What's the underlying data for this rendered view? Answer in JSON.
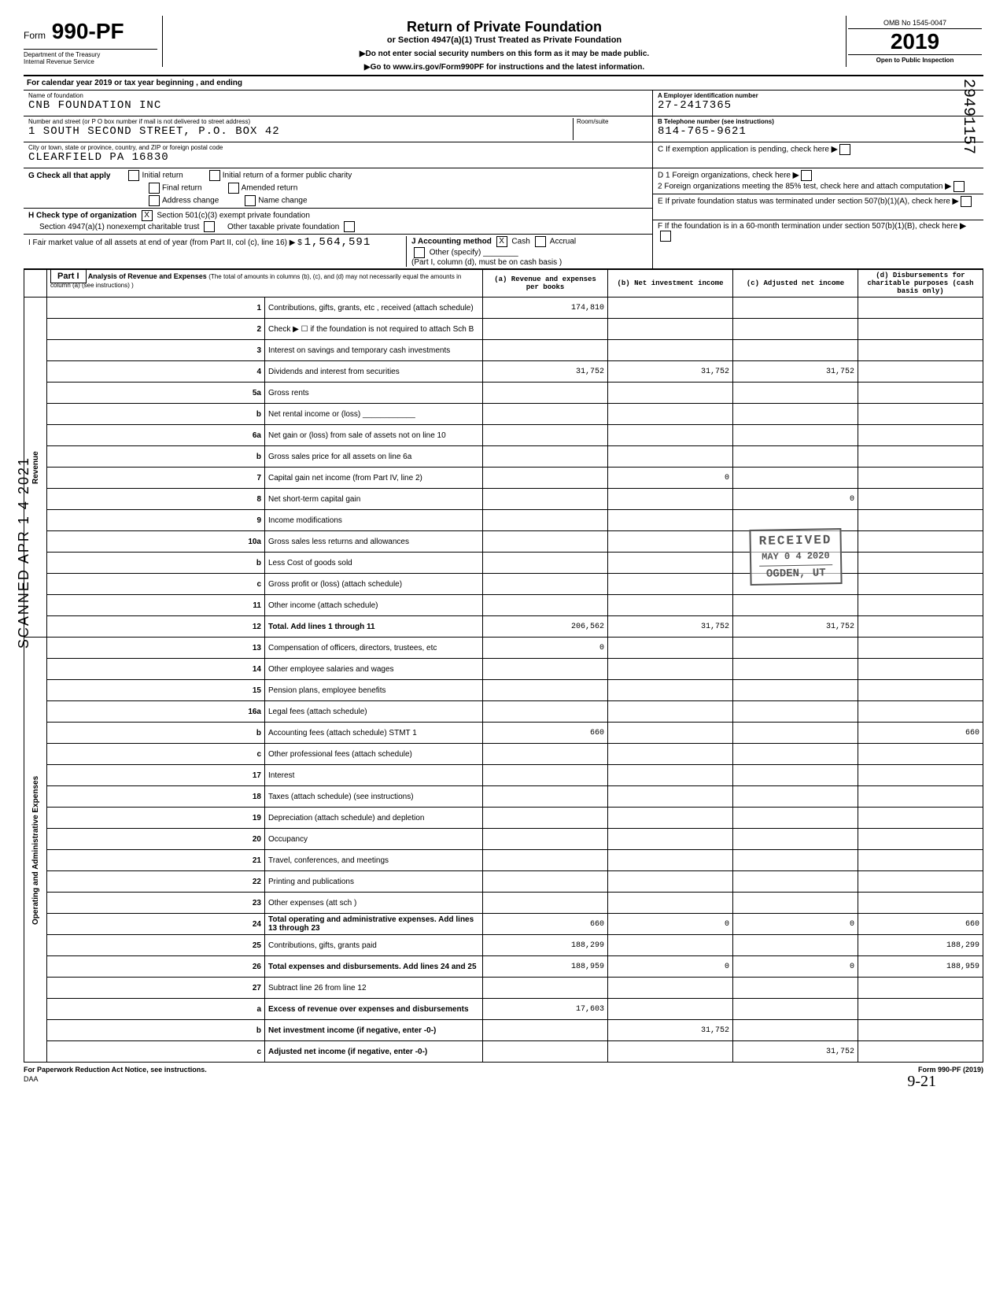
{
  "header": {
    "form_prefix": "Form",
    "form_number": "990-PF",
    "dept1": "Department of the Treasury",
    "dept2": "Internal Revenue Service",
    "title": "Return of Private Foundation",
    "subtitle": "or Section 4947(a)(1) Trust Treated as Private Foundation",
    "instr1": "▶Do not enter social security numbers on this form as it may be made public.",
    "instr2": "▶Go to www.irs.gov/Form990PF for instructions and the latest information.",
    "omb": "OMB No 1545-0047",
    "year": "2019",
    "open": "Open to Public Inspection"
  },
  "cal_year": "For calendar year 2019 or tax year beginning                                 , and ending",
  "foundation": {
    "name_label": "Name of foundation",
    "name": "CNB FOUNDATION INC",
    "addr_label": "Number and street (or P O box number if mail is not delivered to street address)",
    "addr": "1 SOUTH SECOND STREET, P.O. BOX 42",
    "room_label": "Room/suite",
    "city_label": "City or town, state or province, country, and ZIP or foreign postal code",
    "city": "CLEARFIELD                    PA 16830"
  },
  "right_box": {
    "a_label": "A   Employer identification number",
    "a_val": "27-2417365",
    "b_label": "B   Telephone number (see instructions)",
    "b_val": "814-765-9621",
    "c_label": "C   If exemption application is pending, check here",
    "d1": "D  1  Foreign organizations, check here",
    "d2": "2  Foreign organizations meeting the 85% test, check here and attach computation",
    "e": "E   If private foundation status was terminated under section 507(b)(1)(A), check here",
    "f": "F   If the foundation is in a 60-month termination under section 507(b)(1)(B), check here"
  },
  "g": {
    "label": "G  Check all that apply",
    "opts": [
      "Initial return",
      "Final return",
      "Address change",
      "Initial return of a former public charity",
      "Amended return",
      "Name change"
    ]
  },
  "h": {
    "label": "H  Check type of organization",
    "opt1": "Section 501(c)(3) exempt private foundation",
    "opt1_checked": "X",
    "opt2": "Section 4947(a)(1) nonexempt charitable trust",
    "opt3": "Other taxable private foundation"
  },
  "i": {
    "label": "I  Fair market value of all assets at end of year (from Part II, col (c), line 16) ▶  $",
    "val": "1,564,591",
    "j_label": "J  Accounting method",
    "j_cash": "Cash",
    "j_cash_checked": "X",
    "j_accrual": "Accrual",
    "j_other": "Other (specify)",
    "j_note": "(Part I, column (d), must be on cash basis )"
  },
  "part1": {
    "label": "Part I",
    "title": "Analysis of Revenue and Expenses",
    "note": "(The total of amounts in columns (b), (c), and (d) may not necessarily equal the amounts in column (a) (see instructions) )",
    "col_a": "(a) Revenue and expenses per books",
    "col_b": "(b) Net investment income",
    "col_c": "(c) Adjusted net income",
    "col_d": "(d) Disbursements for charitable purposes (cash basis only)"
  },
  "side_labels": {
    "revenue": "Revenue",
    "expenses": "Operating and Administrative Expenses"
  },
  "rows": [
    {
      "n": "1",
      "desc": "Contributions, gifts, grants, etc , received (attach schedule)",
      "a": "174,810",
      "b": "",
      "c": "",
      "d": ""
    },
    {
      "n": "2",
      "desc": "Check ▶  ☐  if the foundation is not required to attach Sch B",
      "a": "",
      "b": "",
      "c": "",
      "d": ""
    },
    {
      "n": "3",
      "desc": "Interest on savings and temporary cash investments",
      "a": "",
      "b": "",
      "c": "",
      "d": ""
    },
    {
      "n": "4",
      "desc": "Dividends and interest from securities",
      "a": "31,752",
      "b": "31,752",
      "c": "31,752",
      "d": ""
    },
    {
      "n": "5a",
      "desc": "Gross rents",
      "a": "",
      "b": "",
      "c": "",
      "d": ""
    },
    {
      "n": "b",
      "desc": "Net rental income or (loss)  ____________",
      "a": "",
      "b": "",
      "c": "",
      "d": ""
    },
    {
      "n": "6a",
      "desc": "Net gain or (loss) from sale of assets not on line 10",
      "a": "",
      "b": "",
      "c": "",
      "d": ""
    },
    {
      "n": "b",
      "desc": "Gross sales price for all assets on line 6a",
      "a": "",
      "b": "",
      "c": "",
      "d": ""
    },
    {
      "n": "7",
      "desc": "Capital gain net income (from Part IV, line 2)",
      "a": "",
      "b": "0",
      "c": "",
      "d": ""
    },
    {
      "n": "8",
      "desc": "Net short-term capital gain",
      "a": "",
      "b": "",
      "c": "0",
      "d": ""
    },
    {
      "n": "9",
      "desc": "Income modifications",
      "a": "",
      "b": "",
      "c": "",
      "d": ""
    },
    {
      "n": "10a",
      "desc": "Gross sales less returns and allowances",
      "a": "",
      "b": "",
      "c": "",
      "d": ""
    },
    {
      "n": "b",
      "desc": "Less Cost of goods sold",
      "a": "",
      "b": "",
      "c": "",
      "d": ""
    },
    {
      "n": "c",
      "desc": "Gross profit or (loss) (attach schedule)",
      "a": "",
      "b": "",
      "c": "",
      "d": ""
    },
    {
      "n": "11",
      "desc": "Other income (attach schedule)",
      "a": "",
      "b": "",
      "c": "",
      "d": ""
    },
    {
      "n": "12",
      "desc": "Total. Add lines 1 through 11",
      "a": "206,562",
      "b": "31,752",
      "c": "31,752",
      "d": "",
      "bold": true
    },
    {
      "n": "13",
      "desc": "Compensation of officers, directors, trustees, etc",
      "a": "0",
      "b": "",
      "c": "",
      "d": ""
    },
    {
      "n": "14",
      "desc": "Other employee salaries and wages",
      "a": "",
      "b": "",
      "c": "",
      "d": ""
    },
    {
      "n": "15",
      "desc": "Pension plans, employee benefits",
      "a": "",
      "b": "",
      "c": "",
      "d": ""
    },
    {
      "n": "16a",
      "desc": "Legal fees (attach schedule)",
      "a": "",
      "b": "",
      "c": "",
      "d": ""
    },
    {
      "n": "b",
      "desc": "Accounting fees (attach schedule)            STMT 1",
      "a": "660",
      "b": "",
      "c": "",
      "d": "660"
    },
    {
      "n": "c",
      "desc": "Other professional fees (attach schedule)",
      "a": "",
      "b": "",
      "c": "",
      "d": ""
    },
    {
      "n": "17",
      "desc": "Interest",
      "a": "",
      "b": "",
      "c": "",
      "d": ""
    },
    {
      "n": "18",
      "desc": "Taxes (attach schedule) (see instructions)",
      "a": "",
      "b": "",
      "c": "",
      "d": ""
    },
    {
      "n": "19",
      "desc": "Depreciation (attach schedule) and depletion",
      "a": "",
      "b": "",
      "c": "",
      "d": ""
    },
    {
      "n": "20",
      "desc": "Occupancy",
      "a": "",
      "b": "",
      "c": "",
      "d": ""
    },
    {
      "n": "21",
      "desc": "Travel, conferences, and meetings",
      "a": "",
      "b": "",
      "c": "",
      "d": ""
    },
    {
      "n": "22",
      "desc": "Printing and publications",
      "a": "",
      "b": "",
      "c": "",
      "d": ""
    },
    {
      "n": "23",
      "desc": "Other expenses (att sch )",
      "a": "",
      "b": "",
      "c": "",
      "d": ""
    },
    {
      "n": "24",
      "desc": "Total operating and administrative expenses. Add lines 13 through 23",
      "a": "660",
      "b": "0",
      "c": "0",
      "d": "660",
      "bold": true
    },
    {
      "n": "25",
      "desc": "Contributions, gifts, grants paid",
      "a": "188,299",
      "b": "",
      "c": "",
      "d": "188,299"
    },
    {
      "n": "26",
      "desc": "Total expenses and disbursements. Add lines 24 and 25",
      "a": "188,959",
      "b": "0",
      "c": "0",
      "d": "188,959",
      "bold": true
    },
    {
      "n": "27",
      "desc": "Subtract line 26 from line 12",
      "a": "",
      "b": "",
      "c": "",
      "d": ""
    },
    {
      "n": "a",
      "desc": "Excess of revenue over expenses and disbursements",
      "a": "17,603",
      "b": "",
      "c": "",
      "d": "",
      "bold": true
    },
    {
      "n": "b",
      "desc": "Net investment income (if negative, enter -0-)",
      "a": "",
      "b": "31,752",
      "c": "",
      "d": "",
      "bold": true
    },
    {
      "n": "c",
      "desc": "Adjusted net income (if negative, enter -0-)",
      "a": "",
      "b": "",
      "c": "31,752",
      "d": "",
      "bold": true
    }
  ],
  "footer": {
    "left": "For Paperwork Reduction Act Notice, see instructions.",
    "mid": "DAA",
    "right": "Form 990-PF (2019)"
  },
  "stamp": {
    "l1": "RECEIVED",
    "l2": "MAY 0 4 2020",
    "l3": "OGDEN, UT"
  },
  "margin": {
    "scanned": "SCANNED APR 1 4 2021",
    "right_num": "29491157",
    "hand": "9-21"
  }
}
